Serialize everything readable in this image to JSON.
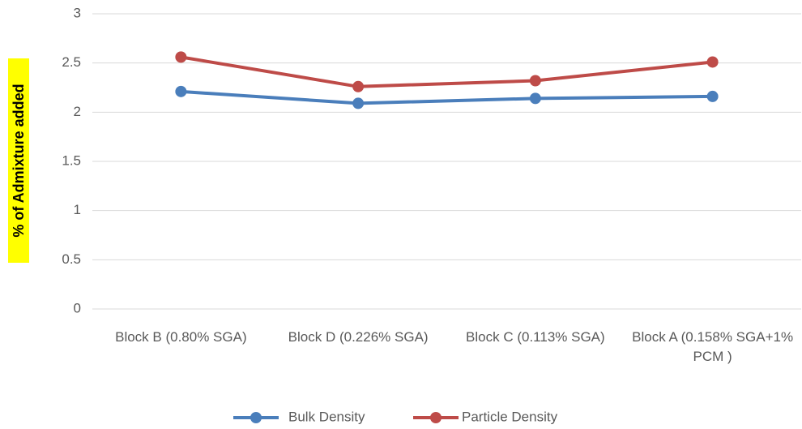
{
  "chart_data": {
    "type": "line",
    "y_label": "% of Admixture added",
    "categories": [
      "Block B (0.80% SGA)",
      "Block D (0.226% SGA)",
      "Block C (0.113% SGA)",
      "Block A (0.158% SGA+1% PCM )"
    ],
    "series": [
      {
        "name": "Bulk Density",
        "color": "#4a7ebb",
        "values": [
          2.21,
          2.09,
          2.14,
          2.16
        ]
      },
      {
        "name": "Particle Density",
        "color": "#be4b48",
        "values": [
          2.56,
          2.26,
          2.32,
          2.51
        ]
      }
    ],
    "ylim": [
      0,
      3
    ],
    "yticks": [
      0,
      0.5,
      1,
      1.5,
      2,
      2.5,
      3
    ],
    "grid": true,
    "legend": "bottom"
  }
}
